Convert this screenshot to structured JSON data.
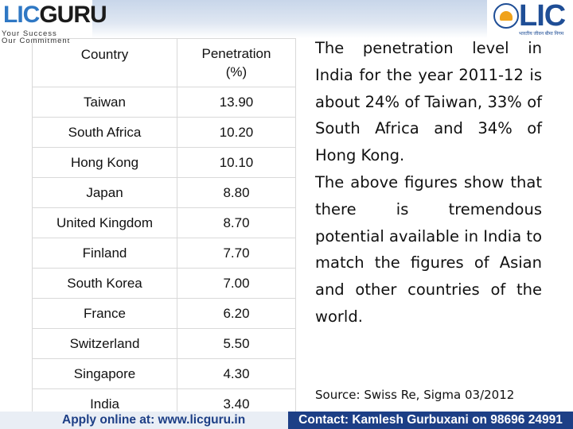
{
  "header": {
    "logo_lic": "LIC",
    "logo_guru": "GURU",
    "logo_tagline_1": "Your Success",
    "logo_tagline_2": "Our Commitment",
    "brand_right": "LIC",
    "brand_right_sub": "भारतीय जीवन बीमा निगम"
  },
  "table": {
    "col_country": "Country",
    "col_pen_1": "Penetration",
    "col_pen_2": "(%)",
    "rows": [
      {
        "country": "Taiwan",
        "value": "13.90"
      },
      {
        "country": "South Africa",
        "value": "10.20"
      },
      {
        "country": "Hong Kong",
        "value": "10.10"
      },
      {
        "country": "Japan",
        "value": "8.80"
      },
      {
        "country": "United Kingdom",
        "value": "8.70"
      },
      {
        "country": "Finland",
        "value": "7.70"
      },
      {
        "country": "South Korea",
        "value": "7.00"
      },
      {
        "country": "France",
        "value": "6.20"
      },
      {
        "country": "Switzerland",
        "value": "5.50"
      },
      {
        "country": "Singapore",
        "value": "4.30"
      },
      {
        "country": "India",
        "value": "3.40"
      }
    ]
  },
  "text": {
    "para1": "The penetration level in India for the year 2011-12 is about 24% of Taiwan, 33% of South Africa and 34% of Hong Kong.",
    "para2": "The above figures show that there is tremendous potential available in India to match the figures of Asian and other countries of the world.",
    "source": "Source: Swiss Re, Sigma 03/2012"
  },
  "footer": {
    "left": "Apply online at: www.licguru.in",
    "right": "Contact: Kamlesh Gurbuxani on 98696 24991"
  }
}
